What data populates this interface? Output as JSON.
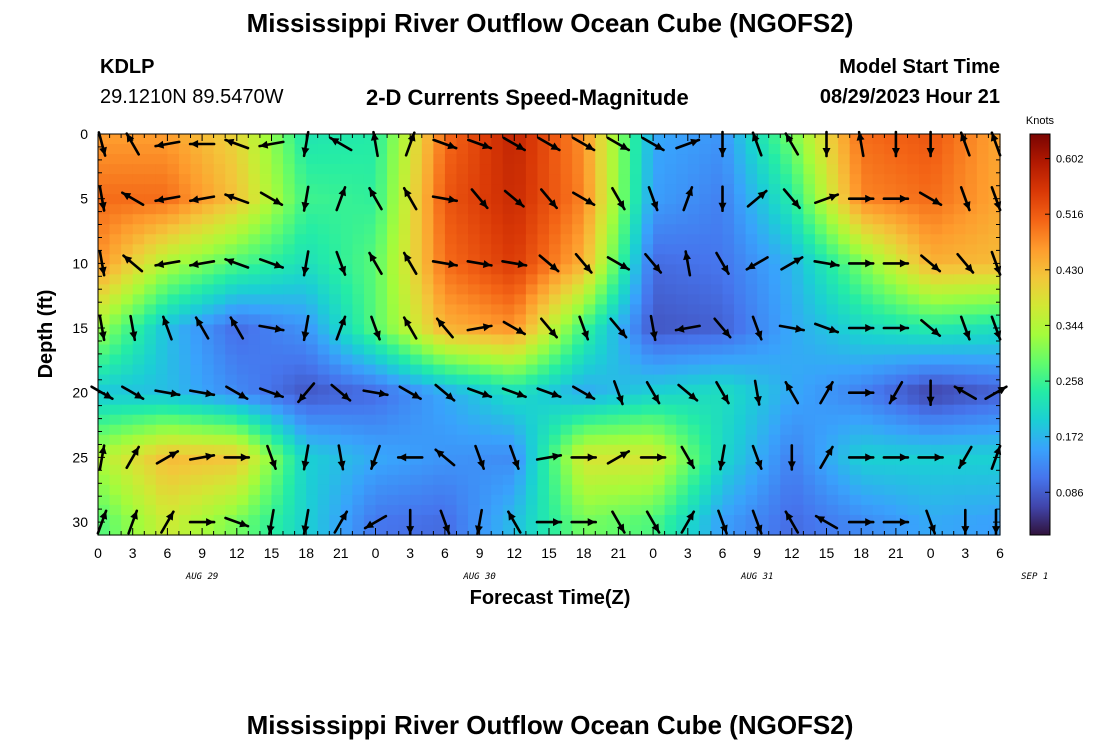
{
  "header": {
    "title": "Mississippi River Outflow Ocean Cube (NGOFS2)",
    "station_id": "KDLP",
    "coordinates": "29.1210N  89.5470W",
    "subtitle": "2-D Currents Speed-Magnitude",
    "model_start_label": "Model Start Time",
    "model_start_value": "08/29/2023 Hour 21"
  },
  "footer": {
    "title": "Mississippi River Outflow Ocean Cube (NGOFS2)"
  },
  "chart_data": {
    "type": "heatmap",
    "title": "2-D Currents Speed-Magnitude",
    "xlabel": "Forecast Time(Z)",
    "ylabel": "Depth (ft)",
    "x_tick_labels": [
      "0",
      "3",
      "6",
      "9",
      "12",
      "15",
      "18",
      "21",
      "0",
      "3",
      "6",
      "9",
      "12",
      "15",
      "18",
      "21",
      "0",
      "3",
      "6",
      "9",
      "12",
      "15",
      "18",
      "21",
      "0",
      "3",
      "6"
    ],
    "day_labels": [
      {
        "label": "AUG 29",
        "hour_offset": 9
      },
      {
        "label": "AUG 30",
        "hour_offset": 33
      },
      {
        "label": "AUG 31",
        "hour_offset": 57
      },
      {
        "label": "SEP 1",
        "hour_offset": 81
      }
    ],
    "x_range_hours": [
      0,
      78
    ],
    "y_ticks": [
      0,
      5,
      10,
      15,
      20,
      25,
      30
    ],
    "y_range": [
      0,
      31
    ],
    "y_inverted": true,
    "colorbar": {
      "unit": "Knots",
      "ticks": [
        0.602,
        0.516,
        0.43,
        0.344,
        0.258,
        0.172,
        0.086
      ],
      "range": [
        0.02,
        0.64
      ],
      "colors": [
        "#30123b",
        "#4145ab",
        "#4675ed",
        "#39a2fc",
        "#1bcfd4",
        "#24eca6",
        "#61fc6c",
        "#a4fc3b",
        "#d1e834",
        "#f3c63a",
        "#fe9b2d",
        "#f36315",
        "#d93806",
        "#b11901",
        "#7a0402"
      ]
    },
    "speed_field": {
      "hours": [
        0,
        6,
        12,
        18,
        24,
        30,
        36,
        42,
        48,
        54,
        60,
        66,
        72,
        78
      ],
      "depths": [
        0,
        5,
        10,
        15,
        20,
        25,
        30
      ],
      "values": [
        [
          0.46,
          0.46,
          0.4,
          0.23,
          0.24,
          0.5,
          0.58,
          0.47,
          0.16,
          0.14,
          0.3,
          0.5,
          0.52,
          0.45
        ],
        [
          0.5,
          0.5,
          0.42,
          0.26,
          0.25,
          0.52,
          0.57,
          0.48,
          0.15,
          0.12,
          0.24,
          0.48,
          0.5,
          0.45
        ],
        [
          0.47,
          0.34,
          0.27,
          0.22,
          0.28,
          0.5,
          0.55,
          0.44,
          0.1,
          0.11,
          0.17,
          0.3,
          0.44,
          0.43
        ],
        [
          0.33,
          0.18,
          0.1,
          0.14,
          0.28,
          0.44,
          0.47,
          0.26,
          0.08,
          0.09,
          0.16,
          0.21,
          0.24,
          0.22
        ],
        [
          0.19,
          0.18,
          0.13,
          0.08,
          0.1,
          0.16,
          0.22,
          0.16,
          0.2,
          0.22,
          0.16,
          0.12,
          0.06,
          0.09
        ],
        [
          0.34,
          0.43,
          0.42,
          0.2,
          0.16,
          0.14,
          0.13,
          0.38,
          0.38,
          0.21,
          0.12,
          0.2,
          0.2,
          0.2
        ],
        [
          0.27,
          0.37,
          0.3,
          0.2,
          0.11,
          0.1,
          0.18,
          0.3,
          0.27,
          0.15,
          0.1,
          0.13,
          0.16,
          0.15
        ]
      ]
    },
    "vectors": {
      "times_hours": [
        0,
        3,
        6,
        9,
        12,
        15,
        18,
        21,
        24,
        27,
        30,
        33,
        36,
        39,
        42,
        45,
        48,
        51,
        54,
        57,
        60,
        63,
        66,
        69,
        72,
        75,
        78
      ],
      "depths": [
        0,
        5,
        10,
        15,
        20,
        25,
        30
      ],
      "directions_deg": [
        [
          165,
          330,
          260,
          270,
          290,
          260,
          190,
          300,
          350,
          20,
          110,
          110,
          120,
          120,
          120,
          120,
          120,
          70,
          180,
          340,
          330,
          180,
          350,
          180,
          180,
          340,
          340
        ],
        [
          170,
          300,
          260,
          260,
          290,
          120,
          190,
          20,
          330,
          330,
          100,
          140,
          130,
          140,
          120,
          150,
          160,
          20,
          180,
          50,
          140,
          70,
          90,
          90,
          120,
          160,
          160
        ],
        [
          170,
          310,
          260,
          260,
          290,
          110,
          190,
          160,
          330,
          330,
          100,
          100,
          100,
          130,
          140,
          120,
          140,
          350,
          150,
          240,
          60,
          100,
          90,
          90,
          130,
          140,
          160
        ],
        [
          170,
          170,
          340,
          330,
          330,
          100,
          190,
          20,
          160,
          330,
          320,
          80,
          120,
          140,
          160,
          140,
          170,
          260,
          140,
          160,
          100,
          110,
          90,
          90,
          130,
          160,
          160
        ],
        [
          120,
          120,
          100,
          100,
          120,
          110,
          220,
          130,
          100,
          120,
          130,
          110,
          110,
          110,
          120,
          160,
          150,
          130,
          150,
          170,
          330,
          30,
          90,
          210,
          180,
          300,
          60
        ],
        [
          10,
          30,
          60,
          80,
          90,
          160,
          190,
          170,
          200,
          270,
          310,
          160,
          160,
          80,
          90,
          60,
          90,
          150,
          190,
          160,
          180,
          30,
          90,
          90,
          90,
          210,
          20
        ],
        [
          20,
          20,
          30,
          90,
          110,
          190,
          190,
          30,
          240,
          180,
          160,
          190,
          330,
          90,
          90,
          150,
          150,
          30,
          160,
          160,
          330,
          300,
          90,
          90,
          160,
          180,
          180
        ]
      ]
    }
  }
}
